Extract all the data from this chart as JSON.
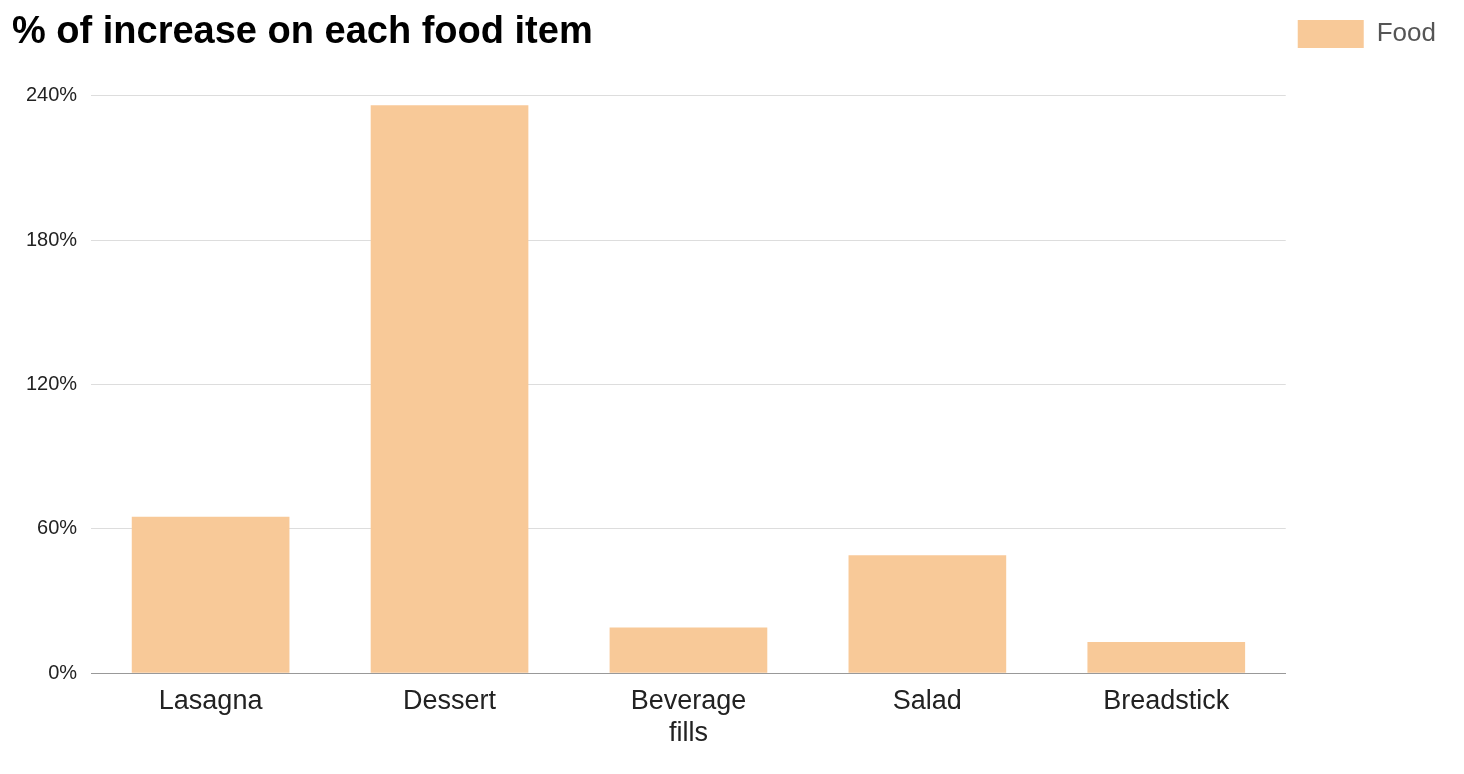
{
  "chart_data": {
    "type": "bar",
    "title": "% of increase on each food item",
    "categories": [
      "Lasagna",
      "Dessert",
      "Beverage fills",
      "Salad",
      "Breadstick"
    ],
    "series": [
      {
        "name": "Food",
        "color": "#f8c998",
        "values": [
          65,
          236,
          19,
          49,
          13
        ]
      }
    ],
    "ylim": [
      0,
      240
    ],
    "yticks": [
      {
        "value": 0,
        "label": "0%"
      },
      {
        "value": 60,
        "label": "60%"
      },
      {
        "value": 120,
        "label": "120%"
      },
      {
        "value": 180,
        "label": "180%"
      },
      {
        "value": 240,
        "label": "240%"
      }
    ],
    "grid": "y",
    "legend": "top right"
  }
}
